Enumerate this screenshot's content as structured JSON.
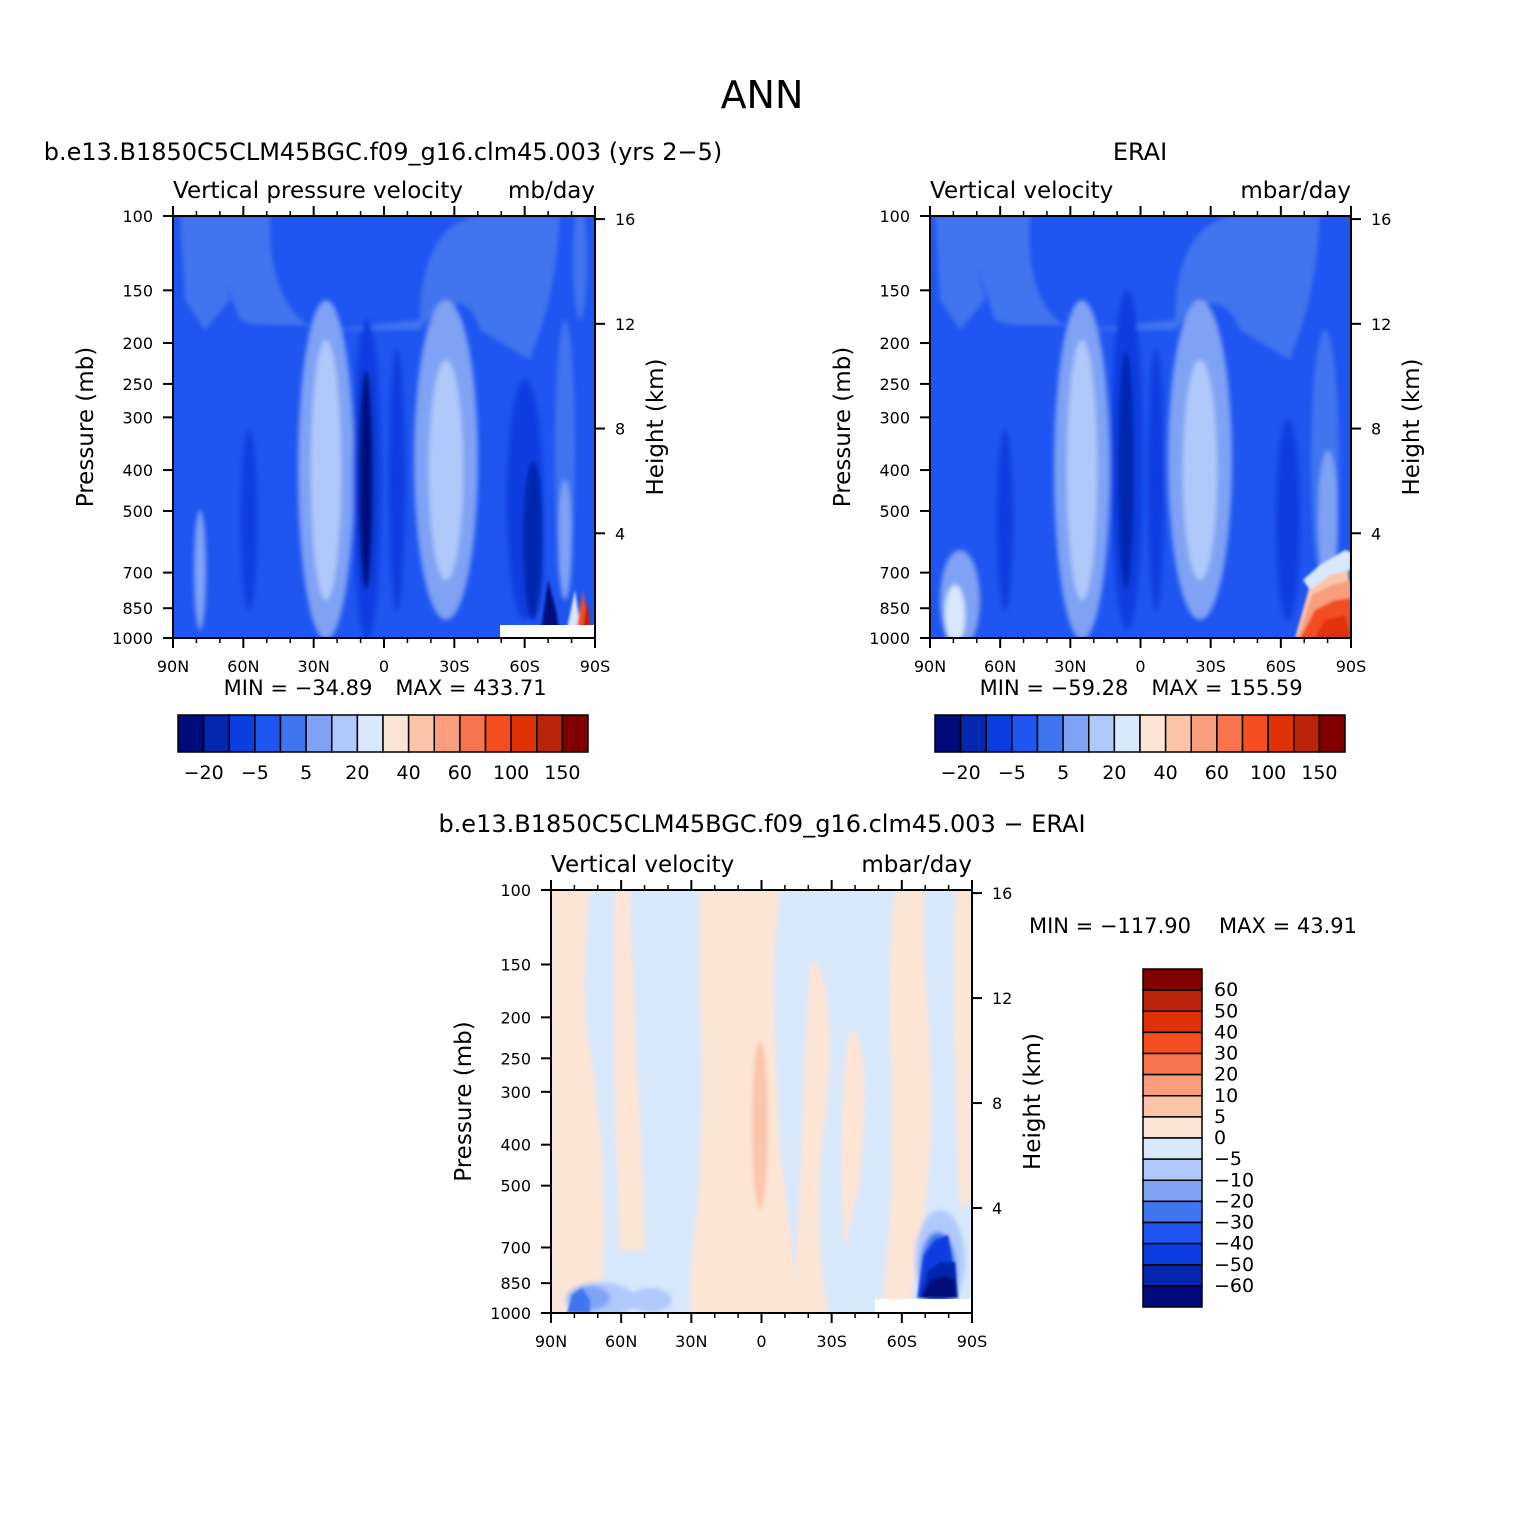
{
  "page_title": "ANN",
  "panels": [
    {
      "id": "model",
      "case_title": "b.e13.B1850C5CLM45BGC.f09_g16.clm45.003 (yrs 2−5)",
      "left_label": "Vertical pressure velocity",
      "right_label": "mb/day",
      "min_text": "MIN = −34.89",
      "max_text": "MAX = 433.71"
    },
    {
      "id": "obs",
      "case_title": "ERAI",
      "left_label": "Vertical velocity",
      "right_label": "mbar/day",
      "min_text": "MIN = −59.28",
      "max_text": "MAX = 155.59"
    },
    {
      "id": "diff",
      "case_title": "b.e13.B1850C5CLM45BGC.f09_g16.clm45.003 − ERAI",
      "left_label": "Vertical velocity",
      "right_label": "mbar/day",
      "min_text": "MIN = −117.90",
      "max_text": "MAX = 43.91"
    }
  ],
  "chart_data": {
    "type": "heatmap",
    "x_axis": {
      "ticks": [
        "90N",
        "60N",
        "30N",
        "0",
        "30S",
        "60S",
        "90S"
      ],
      "range": [
        "90N",
        "90S"
      ]
    },
    "y_axis_left": {
      "label": "Pressure (mb)",
      "scale": "log",
      "ticks": [
        100,
        150,
        200,
        250,
        300,
        400,
        500,
        700,
        850,
        1000
      ],
      "range": [
        1000,
        100
      ]
    },
    "y_axis_right": {
      "label": "Height (km)",
      "ticks": [
        16,
        12,
        8,
        4
      ]
    },
    "main_colorbar": {
      "colors": [
        "#000a7a",
        "#0527b0",
        "#0a3ee0",
        "#1f55f0",
        "#3f75ef",
        "#7fa2f4",
        "#b0c9fb",
        "#d8e8fd",
        "#fde5d5",
        "#fbc5aa",
        "#f99e7d",
        "#f7744e",
        "#f44d20",
        "#df3307",
        "#b8230a",
        "#800000"
      ],
      "tick_labels": [
        "−20",
        "−5",
        "5",
        "20",
        "40",
        "60",
        "100",
        "150"
      ]
    },
    "diff_colorbar": {
      "colors": [
        "#000a7a",
        "#0527b0",
        "#0a3ee0",
        "#1f55f0",
        "#3f75ef",
        "#7fa2f4",
        "#b0c9fb",
        "#d8e8fd",
        "#fde5d5",
        "#fbc5aa",
        "#f99e7d",
        "#f7744e",
        "#f44d20",
        "#df3307",
        "#b8230a",
        "#800000"
      ],
      "tick_labels": [
        "60",
        "50",
        "40",
        "30",
        "20",
        "10",
        "5",
        "0",
        "−5",
        "−10",
        "−20",
        "−30",
        "−40",
        "−50",
        "−60"
      ]
    }
  }
}
